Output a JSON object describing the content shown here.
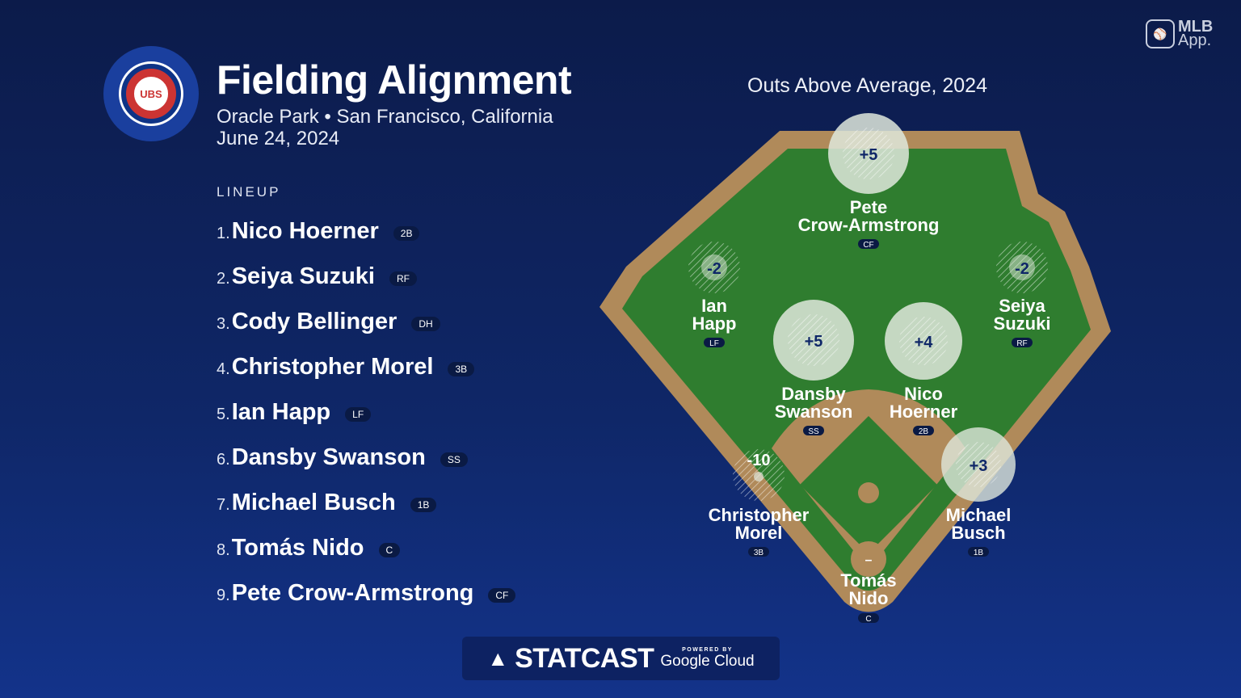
{
  "header": {
    "logo_text": "UBS",
    "title": "Fielding Alignment",
    "venue": "Oracle Park • San Francisco, California",
    "date": "June 24, 2024"
  },
  "brand": {
    "app_line1": "MLB",
    "app_line2": "App."
  },
  "lineup": {
    "heading": "LINEUP",
    "players": [
      {
        "num": "1.",
        "name": "Nico Hoerner",
        "pos": "2B"
      },
      {
        "num": "2.",
        "name": "Seiya Suzuki",
        "pos": "RF"
      },
      {
        "num": "3.",
        "name": "Cody Bellinger",
        "pos": "DH"
      },
      {
        "num": "4.",
        "name": "Christopher Morel",
        "pos": "3B"
      },
      {
        "num": "5.",
        "name": "Ian Happ",
        "pos": "LF"
      },
      {
        "num": "6.",
        "name": "Dansby Swanson",
        "pos": "SS"
      },
      {
        "num": "7.",
        "name": "Michael Busch",
        "pos": "1B"
      },
      {
        "num": "8.",
        "name": "Tomás Nido",
        "pos": "C"
      },
      {
        "num": "9.",
        "name": "Pete Crow-Armstrong",
        "pos": "CF"
      }
    ]
  },
  "field": {
    "title": "Outs Above Average, 2024",
    "positions": [
      {
        "line1": "Pete",
        "line2": "Crow-Armstrong",
        "pos": "CF",
        "oaa": "+5"
      },
      {
        "line1": "Ian",
        "line2": "Happ",
        "pos": "LF",
        "oaa": "-2"
      },
      {
        "line1": "Seiya",
        "line2": "Suzuki",
        "pos": "RF",
        "oaa": "-2"
      },
      {
        "line1": "Dansby",
        "line2": "Swanson",
        "pos": "SS",
        "oaa": "+5"
      },
      {
        "line1": "Nico",
        "line2": "Hoerner",
        "pos": "2B",
        "oaa": "+4"
      },
      {
        "line1": "Christopher",
        "line2": "Morel",
        "pos": "3B",
        "oaa": "-10"
      },
      {
        "line1": "Michael",
        "line2": "Busch",
        "pos": "1B",
        "oaa": "+3"
      },
      {
        "line1": "Tomás",
        "line2": "Nido",
        "pos": "C",
        "oaa": "–"
      }
    ]
  },
  "footer": {
    "statcast": "STATCAST",
    "powered": "POWERED BY",
    "cloud": "Google Cloud"
  },
  "colors": {
    "grass": "#2f7d2f",
    "dirt": "#b08a5a",
    "bg": "#0f2768"
  }
}
